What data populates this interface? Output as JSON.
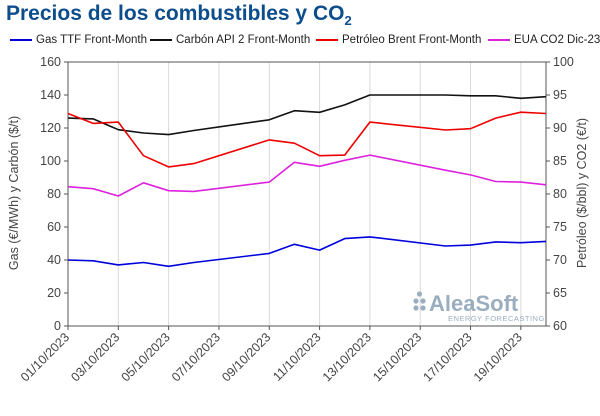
{
  "title_main": "Precios de los combustibles y CO",
  "title_sub": "2",
  "watermark": {
    "brand": "AleaSoft",
    "tagline": "ENERGY FORECASTING"
  },
  "chart_data": {
    "type": "line",
    "x": [
      "01/10/2023",
      "02/10/2023",
      "03/10/2023",
      "04/10/2023",
      "05/10/2023",
      "06/10/2023",
      "07/10/2023",
      "08/10/2023",
      "09/10/2023",
      "10/10/2023",
      "11/10/2023",
      "12/10/2023",
      "13/10/2023",
      "14/10/2023",
      "15/10/2023",
      "16/10/2023",
      "17/10/2023",
      "18/10/2023",
      "19/10/2023",
      "20/10/2023"
    ],
    "xtick_labels": [
      "01/10/2023",
      "03/10/2023",
      "05/10/2023",
      "07/10/2023",
      "09/10/2023",
      "11/10/2023",
      "13/10/2023",
      "15/10/2023",
      "17/10/2023",
      "19/10/2023"
    ],
    "ylabel_left": "Gas (€/MWh) y Carbón ($/t)",
    "ylabel_right": "Petróleo ($/bbl) y CO2 (€/t)",
    "ylim_left": [
      0,
      160
    ],
    "ylim_right": [
      60,
      100
    ],
    "yticks_left": [
      0,
      20,
      40,
      60,
      80,
      100,
      120,
      140,
      160
    ],
    "yticks_right": [
      60,
      65,
      70,
      75,
      80,
      85,
      90,
      95,
      100
    ],
    "grid": "vertical",
    "legend_position": "top",
    "series": [
      {
        "name": "Gas TTF Front-Month",
        "axis": "left",
        "color": "#0000dd",
        "x": [
          "01/10/2023",
          "02/10/2023",
          "03/10/2023",
          "04/10/2023",
          "05/10/2023",
          "06/10/2023",
          "09/10/2023",
          "10/10/2023",
          "11/10/2023",
          "12/10/2023",
          "13/10/2023",
          "16/10/2023",
          "17/10/2023",
          "18/10/2023",
          "19/10/2023",
          "20/10/2023"
        ],
        "values": [
          40,
          39.5,
          37,
          38.5,
          36.2,
          38.5,
          44,
          49.5,
          46,
          53,
          54,
          48.5,
          49,
          51,
          50.5,
          51.3
        ]
      },
      {
        "name": "Carbón API 2 Front-Month",
        "axis": "left",
        "color": "#111111",
        "x": [
          "01/10/2023",
          "02/10/2023",
          "03/10/2023",
          "04/10/2023",
          "05/10/2023",
          "06/10/2023",
          "09/10/2023",
          "10/10/2023",
          "11/10/2023",
          "12/10/2023",
          "13/10/2023",
          "16/10/2023",
          "17/10/2023",
          "18/10/2023",
          "19/10/2023",
          "20/10/2023"
        ],
        "values": [
          126,
          125.5,
          119,
          117,
          116,
          118.5,
          125,
          130.5,
          129.5,
          134,
          140,
          140,
          139.5,
          139.5,
          138,
          139
        ]
      },
      {
        "name": "Petróleo Brent Front-Month",
        "axis": "right",
        "color": "#ee0000",
        "x": [
          "01/10/2023",
          "02/10/2023",
          "03/10/2023",
          "04/10/2023",
          "05/10/2023",
          "06/10/2023",
          "09/10/2023",
          "10/10/2023",
          "11/10/2023",
          "12/10/2023",
          "13/10/2023",
          "16/10/2023",
          "17/10/2023",
          "18/10/2023",
          "19/10/2023",
          "20/10/2023"
        ],
        "values": [
          92.2,
          90.7,
          90.9,
          85.8,
          84.1,
          84.6,
          88.2,
          87.7,
          85.8,
          85.9,
          90.9,
          89.7,
          89.9,
          91.5,
          92.4,
          92.2
        ]
      },
      {
        "name": "EUA CO2 Dic-23",
        "axis": "right",
        "color": "#dd22dd",
        "x": [
          "01/10/2023",
          "02/10/2023",
          "03/10/2023",
          "04/10/2023",
          "05/10/2023",
          "06/10/2023",
          "09/10/2023",
          "10/10/2023",
          "11/10/2023",
          "12/10/2023",
          "13/10/2023",
          "16/10/2023",
          "17/10/2023",
          "18/10/2023",
          "19/10/2023",
          "20/10/2023"
        ],
        "values": [
          81.1,
          80.8,
          79.7,
          81.7,
          80.5,
          80.4,
          81.8,
          84.8,
          84.2,
          85.1,
          85.9,
          83.6,
          82.9,
          81.9,
          81.8,
          81.4
        ]
      }
    ]
  }
}
